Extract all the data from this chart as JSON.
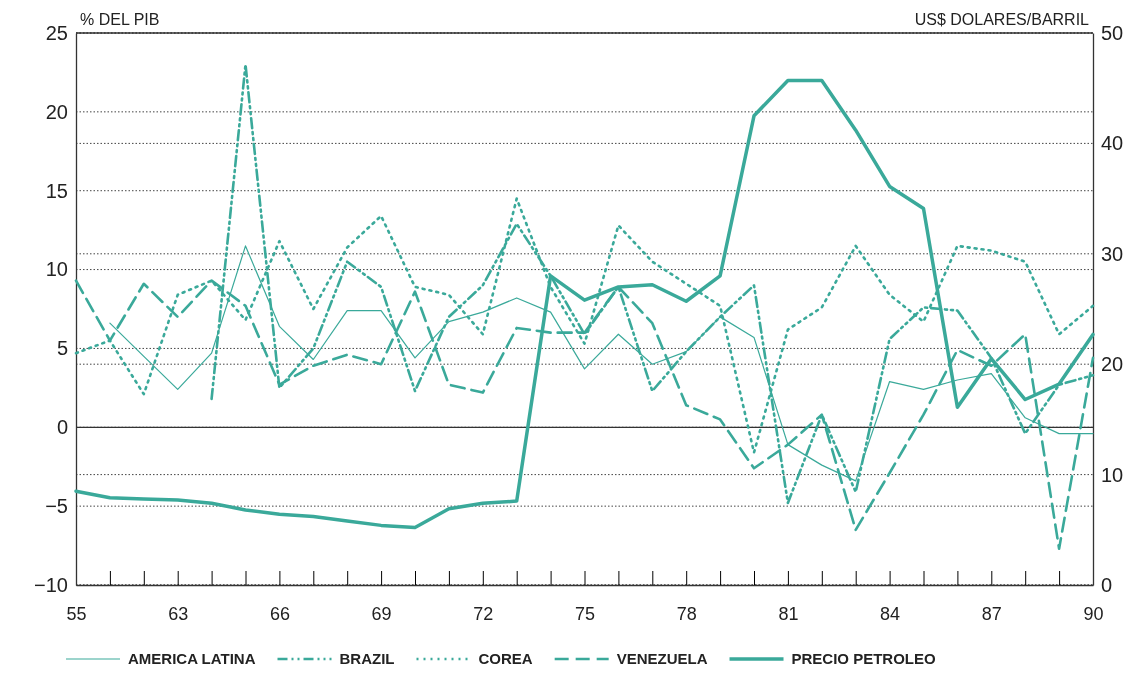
{
  "chart_data": {
    "type": "line",
    "ylabel": "% DEL PIB",
    "y2label": "US$ DOLARES/BARRIL",
    "categories": [
      "55",
      null,
      null,
      "63",
      null,
      null,
      "66",
      null,
      null,
      "69",
      null,
      null,
      "72",
      null,
      null,
      "75",
      null,
      null,
      "78",
      null,
      null,
      "81",
      null,
      null,
      "84",
      null,
      null,
      "87",
      null,
      null,
      "90"
    ],
    "ylim": [
      -10,
      25
    ],
    "yticks": [
      -10,
      -5,
      0,
      5,
      10,
      15,
      20,
      25
    ],
    "y2lim": [
      0,
      50
    ],
    "y2ticks": [
      0,
      10,
      20,
      30,
      40,
      50
    ],
    "grid": "y",
    "legend": "bottom",
    "ref_lines": [
      {
        "axis": "y",
        "value": 0
      }
    ],
    "series": [
      {
        "name": "AMERICA LATINA",
        "color": "#3aa99a",
        "line_style": "solid",
        "values": [
          null,
          6.6,
          4.5,
          2.4,
          4.7,
          11.5,
          6.4,
          4.3,
          7.4,
          7.4,
          4.4,
          6.7,
          7.3,
          8.2,
          7.3,
          3.7,
          5.9,
          4.0,
          4.8,
          7.0,
          5.7,
          -1.1,
          -2.4,
          -3.4,
          2.9,
          2.4,
          3.0,
          3.4,
          0.6,
          -0.4,
          -0.4
        ]
      },
      {
        "name": "BRAZIL",
        "color": "#3aa99a",
        "line_style": "dashdot",
        "values": [
          null,
          null,
          null,
          null,
          1.8,
          23,
          2.5,
          5.0,
          10.5,
          8.9,
          2.3,
          7.0,
          9.0,
          12.9,
          9.6,
          5.9,
          8.9,
          2.3,
          4.8,
          7.0,
          9.0,
          -4.8,
          0.8,
          -4.1,
          5.6,
          7.6,
          7.4,
          4.4,
          -0.4,
          2.7,
          3.3
        ]
      },
      {
        "name": "COREA",
        "color": "#3aa99a",
        "line_style": "dotted",
        "values": [
          4.7,
          5.5,
          2.1,
          8.4,
          9.3,
          6.8,
          11.8,
          7.5,
          11.4,
          13.4,
          8.9,
          8.4,
          5.9,
          14.5,
          8.9,
          5.3,
          12.8,
          10.5,
          9.1,
          7.7,
          -1.6,
          6.2,
          7.6,
          11.5,
          8.4,
          6.7,
          11.5,
          11.2,
          10.5,
          5.9,
          7.7
        ]
      },
      {
        "name": "VENEZUELA",
        "color": "#3aa99a",
        "line_style": "dashed",
        "values": [
          9.3,
          5.5,
          9.1,
          7.0,
          9.3,
          7.7,
          2.7,
          3.9,
          4.6,
          4.0,
          8.6,
          2.7,
          2.2,
          6.3,
          6.0,
          6.0,
          8.9,
          6.6,
          1.4,
          0.5,
          -2.6,
          -1.1,
          0.8,
          -6.5,
          -2.9,
          0.8,
          4.9,
          3.9,
          5.9,
          -7.7,
          4.4
        ]
      },
      {
        "name": "PRECIO PETROLEO",
        "color": "#3aa99a",
        "line_style": "solid",
        "axis": "y2",
        "values": [
          8.5,
          7.9,
          7.8,
          7.7,
          7.4,
          6.8,
          6.4,
          6.2,
          5.8,
          5.4,
          5.2,
          6.9,
          7.4,
          7.6,
          28,
          25.8,
          27,
          27.2,
          25.7,
          28,
          42.5,
          45.7,
          45.7,
          41.2,
          36.1,
          34.1,
          16.1,
          20.5,
          16.8,
          18.2,
          22.7
        ]
      }
    ]
  }
}
